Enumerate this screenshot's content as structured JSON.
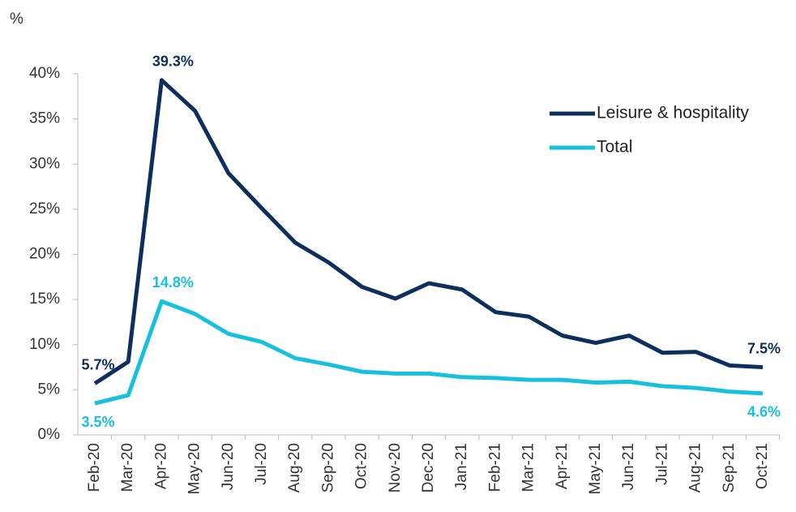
{
  "chart_data": {
    "type": "line",
    "y_axis_label": "%",
    "categories": [
      "Feb-20",
      "Mar-20",
      "Apr-20",
      "May-20",
      "Jun-20",
      "Jul-20",
      "Aug-20",
      "Sep-20",
      "Oct-20",
      "Nov-20",
      "Dec-20",
      "Jan-21",
      "Feb-21",
      "Mar-21",
      "Apr-21",
      "May-21",
      "Jun-21",
      "Jul-21",
      "Aug-21",
      "Sep-21",
      "Oct-21"
    ],
    "series": [
      {
        "name": "Leisure & hospitality",
        "color": "#0d2f5e",
        "values": [
          5.7,
          8.1,
          39.3,
          35.9,
          29.0,
          25.1,
          21.3,
          19.1,
          16.4,
          15.1,
          16.8,
          16.1,
          13.6,
          13.1,
          11.0,
          10.2,
          11.0,
          9.1,
          9.2,
          7.7,
          7.5
        ],
        "value_labels": [
          "5.7%",
          null,
          "39.3%",
          null,
          null,
          null,
          null,
          null,
          null,
          null,
          null,
          null,
          null,
          null,
          null,
          null,
          null,
          null,
          null,
          null,
          "7.5%"
        ]
      },
      {
        "name": "Total",
        "color": "#17c0de",
        "values": [
          3.5,
          4.4,
          14.8,
          13.4,
          11.2,
          10.3,
          8.5,
          7.8,
          7.0,
          6.8,
          6.8,
          6.4,
          6.3,
          6.1,
          6.1,
          5.8,
          5.9,
          5.4,
          5.2,
          4.8,
          4.6
        ],
        "value_labels": [
          "3.5%",
          null,
          "14.8%",
          null,
          null,
          null,
          null,
          null,
          null,
          null,
          null,
          null,
          null,
          null,
          null,
          null,
          null,
          null,
          null,
          null,
          "4.6%"
        ]
      }
    ],
    "ylim": [
      0,
      40
    ],
    "yticks": [
      {
        "value": 0,
        "label": "0%"
      },
      {
        "value": 5,
        "label": "5%"
      },
      {
        "value": 10,
        "label": "10%"
      },
      {
        "value": 15,
        "label": "15%"
      },
      {
        "value": 20,
        "label": "20%"
      },
      {
        "value": 25,
        "label": "25%"
      },
      {
        "value": 30,
        "label": "30%"
      },
      {
        "value": 35,
        "label": "35%"
      },
      {
        "value": 40,
        "label": "40%"
      }
    ],
    "legend": "upper right"
  }
}
